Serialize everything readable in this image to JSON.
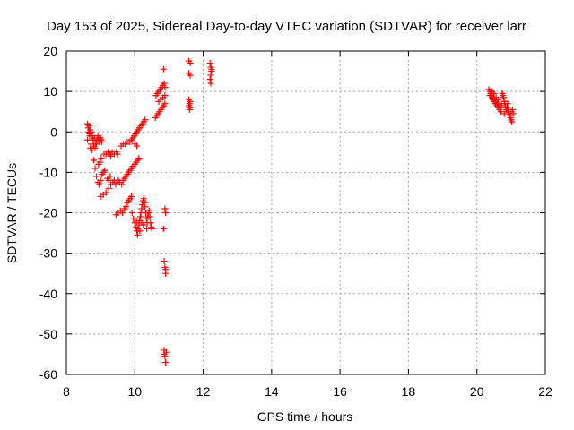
{
  "chart_data": {
    "type": "scatter",
    "title": "Day 153 of 2025, Sidereal Day-to-day VTEC variation (SDTVAR) for receiver larr",
    "xlabel": "GPS time / hours",
    "ylabel": "SDTVAR / TECUs",
    "xlim": [
      8,
      22
    ],
    "ylim": [
      -60,
      20
    ],
    "xticks": [
      8,
      10,
      12,
      14,
      16,
      18,
      20,
      22
    ],
    "yticks": [
      -60,
      -50,
      -40,
      -30,
      -20,
      -10,
      0,
      10,
      20
    ],
    "grid": true,
    "marker": "+",
    "color": "#ff0000",
    "series": [
      {
        "points": [
          [
            8.62,
            2.0
          ],
          [
            8.64,
            1.0
          ],
          [
            8.66,
            0.0
          ],
          [
            8.62,
            -2.0
          ],
          [
            8.68,
            -1.0
          ],
          [
            8.7,
            0.5
          ],
          [
            8.72,
            -3.0
          ],
          [
            8.74,
            -4.5
          ],
          [
            8.7,
            -4.0
          ],
          [
            8.78,
            -2.0
          ],
          [
            8.8,
            -3.5
          ],
          [
            8.82,
            -1.5
          ],
          [
            8.84,
            -4.0
          ],
          [
            8.86,
            -2.5
          ],
          [
            8.88,
            -3.0
          ],
          [
            8.9,
            -2.0
          ],
          [
            8.92,
            -1.0
          ],
          [
            8.94,
            -1.5
          ],
          [
            8.96,
            -2.5
          ],
          [
            9.0,
            -1.5
          ],
          [
            9.02,
            -2.0
          ],
          [
            9.04,
            -2.5
          ],
          [
            8.66,
            1.5
          ],
          [
            8.68,
            -0.5
          ],
          [
            8.72,
            0.0
          ],
          [
            8.76,
            -1.0
          ],
          [
            8.8,
            -7.0
          ],
          [
            8.84,
            -9.0
          ],
          [
            8.88,
            -11.0
          ],
          [
            8.92,
            -12.5
          ],
          [
            8.96,
            -13.0
          ],
          [
            9.0,
            -12.0
          ],
          [
            9.04,
            -10.5
          ],
          [
            9.08,
            -10.0
          ],
          [
            9.12,
            -9.5
          ],
          [
            8.94,
            -8.0
          ],
          [
            8.98,
            -7.5
          ],
          [
            9.02,
            -6.5
          ],
          [
            9.0,
            -16.0
          ],
          [
            9.08,
            -15.5
          ],
          [
            9.16,
            -15.0
          ],
          [
            9.24,
            -14.0
          ],
          [
            9.3,
            -13.0
          ],
          [
            9.36,
            -12.5
          ],
          [
            9.4,
            -12.0
          ],
          [
            9.44,
            -13.0
          ],
          [
            9.48,
            -12.5
          ],
          [
            9.52,
            -12.0
          ],
          [
            9.56,
            -12.5
          ],
          [
            9.62,
            -13.0
          ],
          [
            9.66,
            -12.0
          ],
          [
            9.7,
            -11.5
          ],
          [
            9.74,
            -11.0
          ],
          [
            9.78,
            -10.5
          ],
          [
            9.82,
            -10.0
          ],
          [
            9.86,
            -9.5
          ],
          [
            9.9,
            -9.0
          ],
          [
            9.94,
            -8.5
          ],
          [
            10.0,
            -8.0
          ],
          [
            10.04,
            -7.5
          ],
          [
            10.08,
            -7.0
          ],
          [
            10.12,
            -6.5
          ],
          [
            9.2,
            -11.5
          ],
          [
            9.24,
            -12.0
          ],
          [
            9.28,
            -11.0
          ],
          [
            9.1,
            -5.5
          ],
          [
            9.16,
            -5.5
          ],
          [
            9.22,
            -5.0
          ],
          [
            9.28,
            -5.5
          ],
          [
            9.34,
            -5.0
          ],
          [
            9.4,
            -5.5
          ],
          [
            9.46,
            -5.0
          ],
          [
            9.5,
            -5.5
          ],
          [
            9.3,
            -6.0
          ],
          [
            9.6,
            -3.5
          ],
          [
            9.66,
            -3.0
          ],
          [
            9.72,
            -3.0
          ],
          [
            9.78,
            -2.5
          ],
          [
            9.84,
            -2.5
          ],
          [
            9.9,
            -2.0
          ],
          [
            9.94,
            -1.5
          ],
          [
            9.98,
            -1.0
          ],
          [
            10.02,
            -0.5
          ],
          [
            10.06,
            0.0
          ],
          [
            10.1,
            0.5
          ],
          [
            10.14,
            1.0
          ],
          [
            10.18,
            1.5
          ],
          [
            10.22,
            2.0
          ],
          [
            10.26,
            2.5
          ],
          [
            10.3,
            3.0
          ],
          [
            10.06,
            -3.5
          ],
          [
            10.0,
            -3.0
          ],
          [
            9.45,
            -20.5
          ],
          [
            9.52,
            -20.0
          ],
          [
            9.58,
            -19.5
          ],
          [
            9.64,
            -20.0
          ],
          [
            9.7,
            -19.0
          ],
          [
            9.74,
            -18.5
          ],
          [
            9.78,
            -17.5
          ],
          [
            9.82,
            -17.0
          ],
          [
            9.86,
            -16.5
          ],
          [
            9.9,
            -16.0
          ],
          [
            9.92,
            -20.0
          ],
          [
            9.96,
            -21.5
          ],
          [
            10.0,
            -22.5
          ],
          [
            10.04,
            -23.5
          ],
          [
            10.06,
            -24.5
          ],
          [
            10.08,
            -25.5
          ],
          [
            10.1,
            -24.0
          ],
          [
            10.12,
            -23.0
          ],
          [
            10.14,
            -22.0
          ],
          [
            10.16,
            -21.0
          ],
          [
            10.18,
            -20.0
          ],
          [
            10.2,
            -19.0
          ],
          [
            10.22,
            -18.0
          ],
          [
            10.24,
            -17.0
          ],
          [
            10.26,
            -16.5
          ],
          [
            10.28,
            -17.5
          ],
          [
            10.3,
            -18.5
          ],
          [
            10.32,
            -20.0
          ],
          [
            10.34,
            -21.5
          ],
          [
            10.36,
            -22.5
          ],
          [
            10.38,
            -21.0
          ],
          [
            10.4,
            -20.0
          ],
          [
            10.42,
            -19.5
          ],
          [
            10.44,
            -21.0
          ],
          [
            10.46,
            -22.5
          ],
          [
            10.48,
            -23.5
          ],
          [
            10.5,
            -24.0
          ],
          [
            10.05,
            -22.0
          ],
          [
            10.15,
            -24.5
          ],
          [
            10.25,
            -23.0
          ],
          [
            10.35,
            -24.0
          ],
          [
            10.2,
            -22.5
          ],
          [
            10.6,
            3.5
          ],
          [
            10.64,
            4.0
          ],
          [
            10.68,
            4.5
          ],
          [
            10.72,
            5.0
          ],
          [
            10.76,
            5.5
          ],
          [
            10.8,
            6.0
          ],
          [
            10.84,
            6.5
          ],
          [
            10.88,
            7.0
          ],
          [
            10.62,
            9.0
          ],
          [
            10.66,
            9.5
          ],
          [
            10.7,
            10.0
          ],
          [
            10.74,
            10.5
          ],
          [
            10.78,
            11.0
          ],
          [
            10.82,
            11.5
          ],
          [
            10.86,
            12.0
          ],
          [
            10.88,
            11.0
          ],
          [
            10.7,
            7.5
          ],
          [
            10.76,
            8.0
          ],
          [
            10.82,
            8.5
          ],
          [
            10.88,
            9.0
          ],
          [
            10.84,
            15.5
          ],
          [
            10.84,
            -24.0
          ],
          [
            10.88,
            -19.0
          ],
          [
            10.9,
            -20.0
          ],
          [
            10.86,
            -32.0
          ],
          [
            10.88,
            -33.5
          ],
          [
            10.9,
            -35.0
          ],
          [
            10.9,
            -34.0
          ],
          [
            10.86,
            -54.0
          ],
          [
            10.88,
            -55.5
          ],
          [
            10.9,
            -57.0
          ],
          [
            10.86,
            -55.0
          ],
          [
            10.92,
            -54.5
          ],
          [
            11.58,
            17.5
          ],
          [
            11.62,
            17.0
          ],
          [
            11.58,
            14.5
          ],
          [
            11.62,
            14.0
          ],
          [
            11.58,
            8.0
          ],
          [
            11.62,
            7.5
          ],
          [
            11.58,
            6.5
          ],
          [
            11.62,
            6.0
          ],
          [
            11.6,
            5.5
          ],
          [
            11.6,
            7.0
          ],
          [
            12.2,
            17.0
          ],
          [
            12.22,
            16.0
          ],
          [
            12.24,
            15.0
          ],
          [
            12.22,
            14.0
          ],
          [
            12.2,
            13.0
          ],
          [
            12.22,
            12.0
          ],
          [
            12.24,
            15.5
          ],
          [
            20.35,
            10.5
          ],
          [
            20.38,
            10.0
          ],
          [
            20.4,
            9.5
          ],
          [
            20.42,
            9.0
          ],
          [
            20.44,
            8.5
          ],
          [
            20.46,
            8.0
          ],
          [
            20.48,
            8.5
          ],
          [
            20.5,
            7.5
          ],
          [
            20.52,
            8.0
          ],
          [
            20.54,
            7.0
          ],
          [
            20.56,
            7.5
          ],
          [
            20.58,
            6.5
          ],
          [
            20.6,
            7.0
          ],
          [
            20.62,
            6.0
          ],
          [
            20.64,
            6.5
          ],
          [
            20.66,
            5.5
          ],
          [
            20.68,
            6.0
          ],
          [
            20.7,
            5.0
          ],
          [
            20.72,
            6.5
          ],
          [
            20.74,
            9.5
          ],
          [
            20.76,
            9.0
          ],
          [
            20.78,
            8.5
          ],
          [
            20.8,
            7.5
          ],
          [
            20.82,
            7.0
          ],
          [
            20.84,
            6.0
          ],
          [
            20.86,
            5.5
          ],
          [
            20.88,
            6.0
          ],
          [
            20.9,
            5.0
          ],
          [
            20.92,
            5.5
          ],
          [
            20.94,
            4.5
          ],
          [
            20.96,
            4.0
          ],
          [
            20.98,
            3.5
          ],
          [
            21.0,
            3.0
          ],
          [
            21.02,
            2.5
          ],
          [
            21.04,
            5.5
          ],
          [
            21.06,
            4.5
          ],
          [
            20.38,
            9.0
          ],
          [
            20.44,
            10.0
          ],
          [
            20.5,
            9.5
          ],
          [
            20.56,
            8.5
          ],
          [
            20.62,
            8.0
          ],
          [
            20.68,
            7.0
          ],
          [
            20.8,
            4.5
          ],
          [
            20.9,
            7.0
          ],
          [
            21.0,
            5.0
          ]
        ]
      }
    ]
  }
}
